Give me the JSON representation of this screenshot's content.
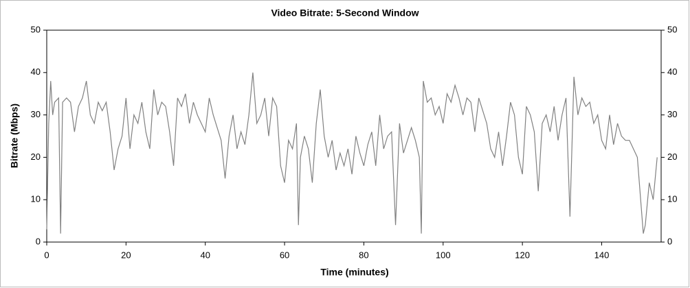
{
  "chart_data": {
    "type": "line",
    "title": "Video Bitrate: 5-Second Window",
    "x_label": "Time (minutes)",
    "y_label": "Bitrate (Mbps)",
    "x": [
      0,
      0.5,
      1,
      1.5,
      2,
      3,
      3.5,
      4,
      5,
      6,
      7,
      8,
      9,
      10,
      11,
      12,
      13,
      14,
      15,
      16,
      17,
      18,
      19,
      20,
      21,
      22,
      23,
      24,
      25,
      26,
      27,
      28,
      29,
      30,
      31,
      32,
      33,
      34,
      35,
      36,
      37,
      38,
      39,
      40,
      41,
      42,
      43,
      44,
      45,
      46,
      47,
      48,
      49,
      50,
      51,
      52,
      53,
      54,
      55,
      56,
      57,
      58,
      59,
      60,
      61,
      62,
      63,
      63.5,
      64,
      65,
      66,
      67,
      68,
      69,
      70,
      71,
      72,
      73,
      74,
      75,
      76,
      77,
      78,
      79,
      80,
      81,
      82,
      83,
      84,
      85,
      86,
      87,
      88,
      89,
      90,
      91,
      92,
      93,
      94,
      94.5,
      95,
      96,
      97,
      98,
      99,
      100,
      101,
      102,
      103,
      104,
      105,
      106,
      107,
      108,
      109,
      110,
      111,
      112,
      113,
      114,
      115,
      116,
      117,
      118,
      119,
      120,
      121,
      122,
      123,
      124,
      125,
      126,
      127,
      128,
      129,
      130,
      131,
      132,
      133,
      134,
      135,
      136,
      137,
      138,
      139,
      140,
      141,
      142,
      143,
      144,
      145,
      146,
      147,
      148,
      149,
      150,
      150.5,
      151,
      152,
      153,
      154
    ],
    "values": [
      3,
      28,
      38,
      30,
      33,
      34,
      2,
      33,
      34,
      33,
      26,
      32,
      34,
      38,
      30,
      28,
      33,
      31,
      33,
      26,
      17,
      22,
      25,
      34,
      22,
      30,
      28,
      33,
      26,
      22,
      36,
      30,
      33,
      32,
      26,
      18,
      34,
      32,
      35,
      28,
      33,
      30,
      28,
      26,
      34,
      30,
      27,
      24,
      15,
      25,
      30,
      22,
      26,
      23,
      30,
      40,
      28,
      30,
      34,
      25,
      34,
      32,
      18,
      14,
      24,
      22,
      28,
      4,
      20,
      25,
      22,
      14,
      28,
      36,
      25,
      20,
      24,
      17,
      21,
      18,
      22,
      16,
      25,
      21,
      18,
      23,
      26,
      18,
      30,
      22,
      25,
      26,
      4,
      28,
      21,
      24,
      27,
      24,
      20,
      2,
      38,
      33,
      34,
      30,
      32,
      28,
      35,
      33,
      37,
      34,
      30,
      34,
      33,
      26,
      34,
      31,
      28,
      22,
      20,
      26,
      18,
      25,
      33,
      30,
      20,
      16,
      32,
      30,
      26,
      12,
      28,
      30,
      26,
      32,
      24,
      30,
      34,
      6,
      39,
      30,
      34,
      32,
      33,
      28,
      30,
      24,
      22,
      30,
      23,
      28,
      25,
      24,
      24,
      22,
      20,
      8,
      2,
      4,
      14,
      10,
      20
    ],
    "color": "#808080",
    "xlim": [
      0,
      155
    ],
    "xticks": [
      0,
      20,
      40,
      60,
      80,
      100,
      120,
      140
    ],
    "ylim": [
      0,
      50
    ],
    "yticks": [
      0,
      10,
      20,
      30,
      40,
      50
    ],
    "y2lim": [
      0,
      50
    ],
    "y2ticks": [
      0,
      10,
      20,
      30,
      40,
      50
    ]
  }
}
